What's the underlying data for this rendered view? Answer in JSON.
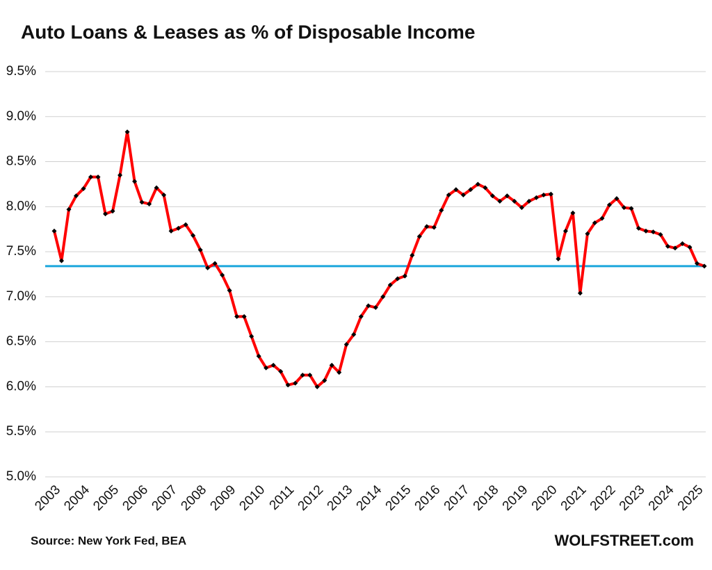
{
  "chart_data": {
    "type": "line",
    "title": "Auto Loans & Leases as % of Disposable Income",
    "source": "Source: New York Fed, BEA",
    "brand": "WOLFSTREET.com",
    "categories": [
      "2003",
      null,
      null,
      null,
      "2004",
      null,
      null,
      null,
      "2005",
      null,
      null,
      null,
      "2006",
      null,
      null,
      null,
      "2007",
      null,
      null,
      null,
      "2008",
      null,
      null,
      null,
      "2009",
      null,
      null,
      null,
      "2010",
      null,
      null,
      null,
      "2011",
      null,
      null,
      null,
      "2012",
      null,
      null,
      null,
      "2013",
      null,
      null,
      null,
      "2014",
      null,
      null,
      null,
      "2015",
      null,
      null,
      null,
      "2016",
      null,
      null,
      null,
      "2017",
      null,
      null,
      null,
      "2018",
      null,
      null,
      null,
      "2019",
      null,
      null,
      null,
      "2020",
      null,
      null,
      null,
      "2021",
      null,
      null,
      null,
      "2022",
      null,
      null,
      null,
      "2023",
      null,
      null,
      null,
      "2024",
      null,
      null,
      null,
      "2025",
      null
    ],
    "values": [
      7.73,
      7.4,
      7.97,
      8.12,
      8.2,
      8.33,
      8.33,
      7.92,
      7.95,
      8.35,
      8.83,
      8.28,
      8.05,
      8.03,
      8.21,
      8.13,
      7.73,
      7.76,
      7.8,
      7.68,
      7.52,
      7.32,
      7.37,
      7.24,
      7.07,
      6.78,
      6.78,
      6.56,
      6.34,
      6.21,
      6.24,
      6.17,
      6.02,
      6.04,
      6.13,
      6.13,
      6.0,
      6.07,
      6.24,
      6.16,
      6.47,
      6.58,
      6.78,
      6.9,
      6.88,
      7.0,
      7.13,
      7.2,
      7.23,
      7.46,
      7.67,
      7.78,
      7.77,
      7.96,
      8.13,
      8.19,
      8.13,
      8.19,
      8.25,
      8.21,
      8.12,
      8.06,
      8.12,
      8.06,
      7.99,
      8.06,
      8.1,
      8.13,
      8.14,
      7.42,
      7.73,
      7.93,
      7.04,
      7.7,
      7.82,
      7.87,
      8.02,
      8.09,
      7.99,
      7.98,
      7.76,
      7.73,
      7.72,
      7.69,
      7.56,
      7.54,
      7.59,
      7.55,
      7.37,
      7.34
    ],
    "color": "#ff0000",
    "marker_color": "#000000",
    "reference_line": {
      "value": 7.34,
      "color": "#1ba6dc"
    },
    "ylim": [
      5.0,
      9.5
    ],
    "yticks": [
      {
        "value": 5.0,
        "label": "5.0%"
      },
      {
        "value": 5.5,
        "label": "5.5%"
      },
      {
        "value": 6.0,
        "label": "6.0%"
      },
      {
        "value": 6.5,
        "label": "6.5%"
      },
      {
        "value": 7.0,
        "label": "7.0%"
      },
      {
        "value": 7.5,
        "label": "7.5%"
      },
      {
        "value": 8.0,
        "label": "8.0%"
      },
      {
        "value": 8.5,
        "label": "8.5%"
      },
      {
        "value": 9.0,
        "label": "9.0%"
      },
      {
        "value": 9.5,
        "label": "9.5%"
      }
    ],
    "grid": true
  }
}
